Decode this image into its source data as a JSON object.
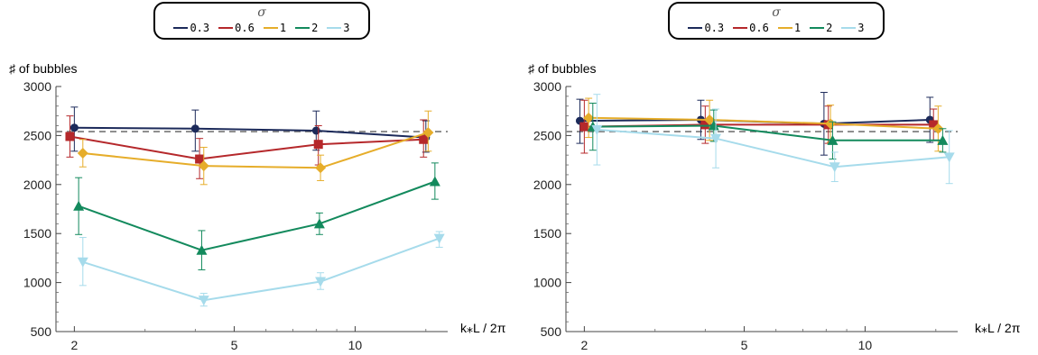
{
  "chart_data": [
    {
      "type": "line",
      "title": "",
      "ylabel": "♯ of bubbles",
      "xlabel": "k⁎L / 2π",
      "xscale": "log",
      "xlim": [
        1.8,
        17
      ],
      "ylim": [
        500,
        3000
      ],
      "xticks": [
        2,
        5,
        10
      ],
      "xtick_labels": [
        "2",
        "5",
        "10"
      ],
      "yticks": [
        500,
        1000,
        1500,
        2000,
        2500,
        3000
      ],
      "ytick_labels": [
        "500",
        "1000",
        "1500",
        "2000",
        "2500",
        "3000"
      ],
      "reference_line": {
        "y": 2540,
        "style": "dashed",
        "color": "#888888"
      },
      "legend": {
        "title": "σ",
        "placement": "top-center"
      },
      "series": [
        {
          "name": "0.3",
          "color": "#1c2a5a",
          "marker": "circle",
          "x": [
            2.0,
            4.0,
            8.0,
            15.0
          ],
          "y": [
            2580,
            2570,
            2550,
            2480
          ],
          "err_low": [
            2340,
            2340,
            2350,
            2330
          ],
          "err_high": [
            2790,
            2760,
            2750,
            2650
          ]
        },
        {
          "name": "0.6",
          "color": "#b5282b",
          "marker": "square",
          "x": [
            1.95,
            4.1,
            8.1,
            14.8
          ],
          "y": [
            2490,
            2260,
            2410,
            2460
          ],
          "err_low": [
            2280,
            2060,
            2200,
            2280
          ],
          "err_high": [
            2700,
            2470,
            2600,
            2660
          ]
        },
        {
          "name": "1",
          "color": "#e6ad2a",
          "marker": "diamond",
          "x": [
            2.1,
            4.2,
            8.2,
            15.2
          ],
          "y": [
            2320,
            2190,
            2170,
            2530
          ],
          "err_low": [
            2180,
            2000,
            2040,
            2340
          ],
          "err_high": [
            2460,
            2380,
            2300,
            2750
          ]
        },
        {
          "name": "2",
          "color": "#138a5d",
          "marker": "triangle-up",
          "x": [
            2.05,
            4.15,
            8.15,
            15.8
          ],
          "y": [
            1780,
            1330,
            1600,
            2030
          ],
          "err_low": [
            1490,
            1130,
            1490,
            1850
          ],
          "err_high": [
            2070,
            1530,
            1710,
            2220
          ]
        },
        {
          "name": "3",
          "color": "#a6dbeb",
          "marker": "triangle-down",
          "x": [
            2.1,
            4.2,
            8.2,
            16.2
          ],
          "y": [
            1210,
            820,
            1010,
            1450
          ],
          "err_low": [
            970,
            760,
            930,
            1360
          ],
          "err_high": [
            1460,
            890,
            1100,
            1520
          ]
        }
      ]
    },
    {
      "type": "line",
      "title": "",
      "ylabel": "♯ of bubbles",
      "xlabel": "k⁎L / 2π",
      "xscale": "log",
      "xlim": [
        1.8,
        17
      ],
      "ylim": [
        500,
        3000
      ],
      "xticks": [
        2,
        5,
        10
      ],
      "xtick_labels": [
        "2",
        "5",
        "10"
      ],
      "yticks": [
        500,
        1000,
        1500,
        2000,
        2500,
        3000
      ],
      "ytick_labels": [
        "500",
        "1000",
        "1500",
        "2000",
        "2500",
        "3000"
      ],
      "reference_line": {
        "y": 2540,
        "style": "dashed",
        "color": "#888888"
      },
      "legend": {
        "title": "σ",
        "placement": "top-center"
      },
      "series": [
        {
          "name": "0.3",
          "color": "#1c2a5a",
          "marker": "circle",
          "x": [
            1.95,
            3.9,
            7.9,
            14.5
          ],
          "y": [
            2650,
            2660,
            2620,
            2660
          ],
          "err_low": [
            2420,
            2460,
            2300,
            2430
          ],
          "err_high": [
            2870,
            2860,
            2940,
            2890
          ]
        },
        {
          "name": "0.6",
          "color": "#b5282b",
          "marker": "square",
          "x": [
            2.0,
            4.0,
            8.1,
            14.8
          ],
          "y": [
            2590,
            2610,
            2610,
            2610
          ],
          "err_low": [
            2320,
            2420,
            2420,
            2450
          ],
          "err_high": [
            2860,
            2800,
            2800,
            2770
          ]
        },
        {
          "name": "1",
          "color": "#e6ad2a",
          "marker": "diamond",
          "x": [
            2.05,
            4.1,
            8.2,
            15.2
          ],
          "y": [
            2680,
            2660,
            2620,
            2570
          ],
          "err_low": [
            2480,
            2450,
            2430,
            2340
          ],
          "err_high": [
            2880,
            2860,
            2810,
            2800
          ]
        },
        {
          "name": "2",
          "color": "#138a5d",
          "marker": "triangle-up",
          "x": [
            2.1,
            4.2,
            8.3,
            15.6
          ],
          "y": [
            2590,
            2600,
            2450,
            2450
          ],
          "err_low": [
            2350,
            2440,
            2260,
            2330
          ],
          "err_high": [
            2830,
            2760,
            2640,
            2570
          ]
        },
        {
          "name": "3",
          "color": "#a6dbeb",
          "marker": "triangle-down",
          "x": [
            2.15,
            4.25,
            8.4,
            16.2
          ],
          "y": [
            2560,
            2470,
            2180,
            2280
          ],
          "err_low": [
            2200,
            2170,
            2030,
            2010
          ],
          "err_high": [
            2920,
            2770,
            2330,
            2550
          ]
        }
      ]
    }
  ]
}
